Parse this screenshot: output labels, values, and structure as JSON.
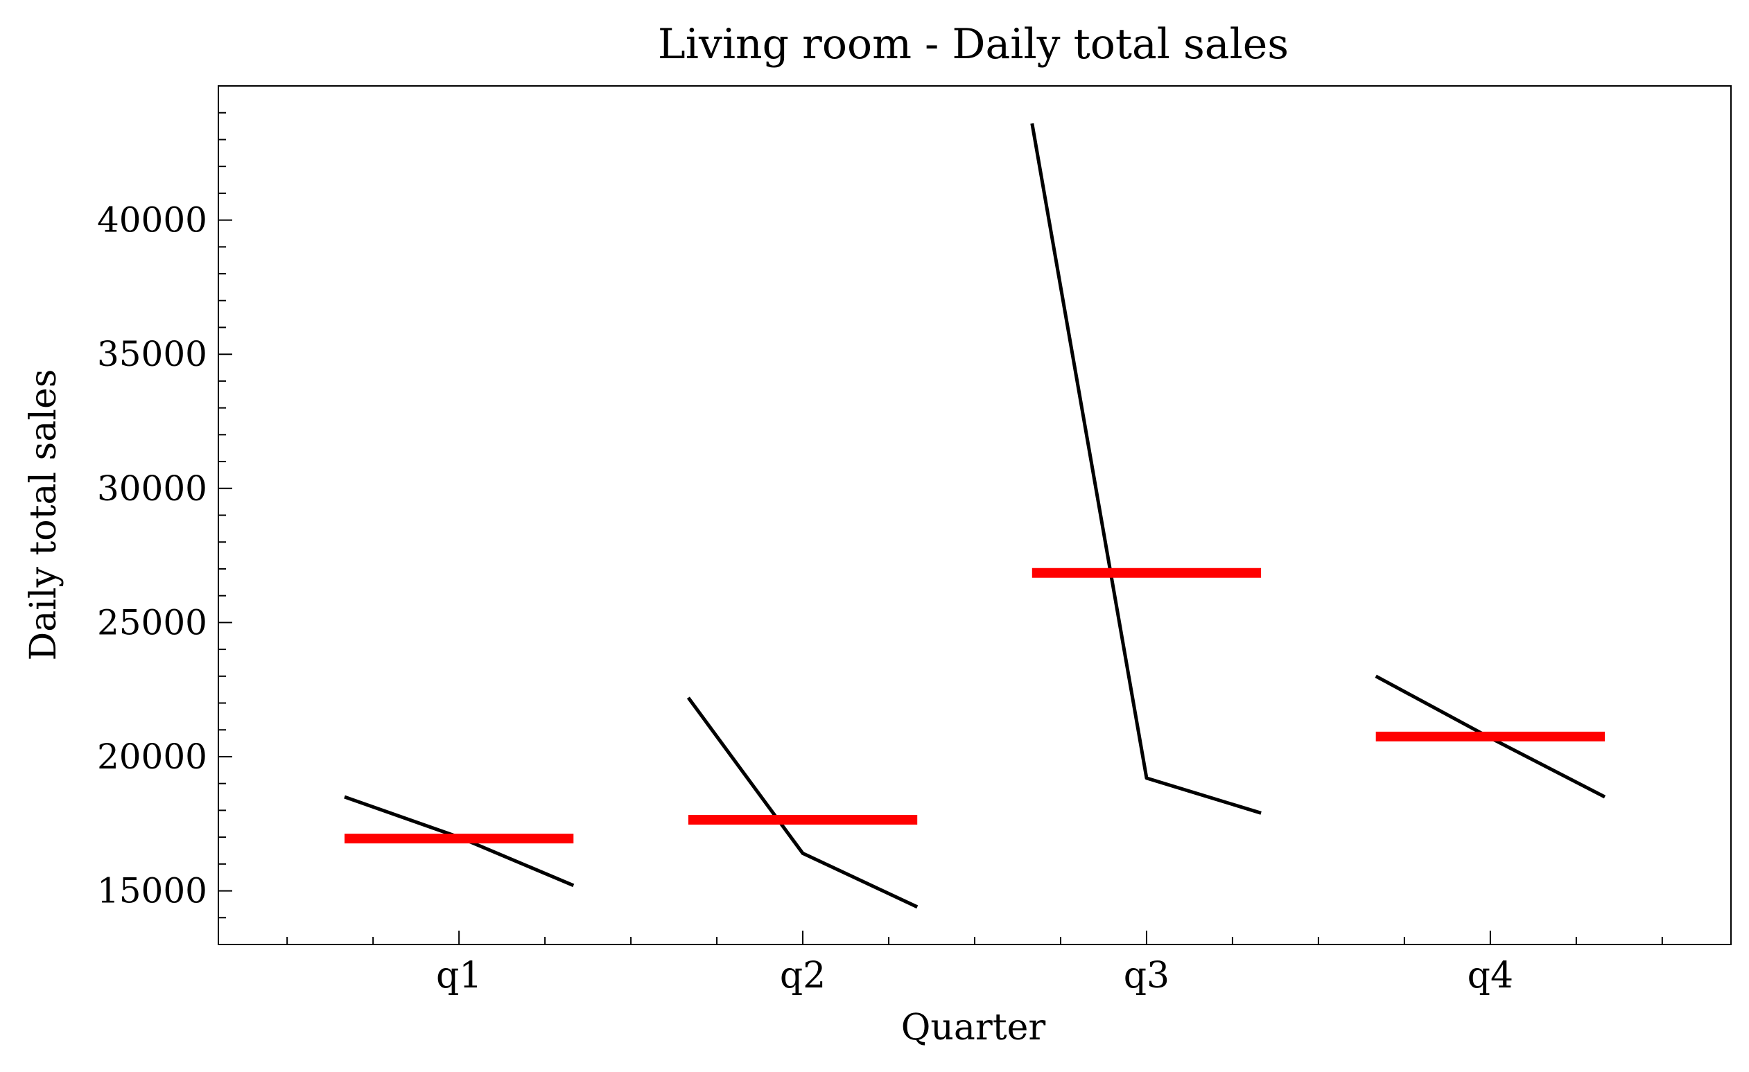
{
  "chart_data": {
    "type": "line",
    "title": "Living room - Daily total sales",
    "xlabel": "Quarter",
    "ylabel": "Daily total sales",
    "categories": [
      "q1",
      "q2",
      "q3",
      "q4"
    ],
    "ylim": [
      13000,
      45000
    ],
    "yticks": [
      15000,
      20000,
      25000,
      30000,
      35000,
      40000
    ],
    "yminor_step": 1000,
    "grid": false,
    "series": [
      {
        "color": "#000000",
        "groups": [
          {
            "category": "q1",
            "x": [
              -0.333,
              0.0,
              0.333
            ],
            "y": [
              18500,
              17000,
              15200
            ]
          },
          {
            "category": "q2",
            "x": [
              -0.333,
              0.0,
              0.333
            ],
            "y": [
              22200,
              16400,
              14400
            ]
          },
          {
            "category": "q3",
            "x": [
              -0.333,
              0.0,
              0.333
            ],
            "y": [
              43600,
              19200,
              17900
            ]
          },
          {
            "category": "q4",
            "x": [
              -0.333,
              0.0,
              0.333
            ],
            "y": [
              23000,
              20700,
              18500
            ]
          }
        ]
      },
      {
        "color": "#ff0000",
        "style": "horizontal-segment",
        "groups": [
          {
            "category": "q1",
            "x": [
              -0.333,
              0.333
            ],
            "y": [
              16950,
              16950
            ]
          },
          {
            "category": "q2",
            "x": [
              -0.333,
              0.333
            ],
            "y": [
              17650,
              17650
            ]
          },
          {
            "category": "q3",
            "x": [
              -0.333,
              0.333
            ],
            "y": [
              26850,
              26850
            ]
          },
          {
            "category": "q4",
            "x": [
              -0.333,
              0.333
            ],
            "y": [
              20750,
              20750
            ]
          }
        ]
      }
    ]
  }
}
